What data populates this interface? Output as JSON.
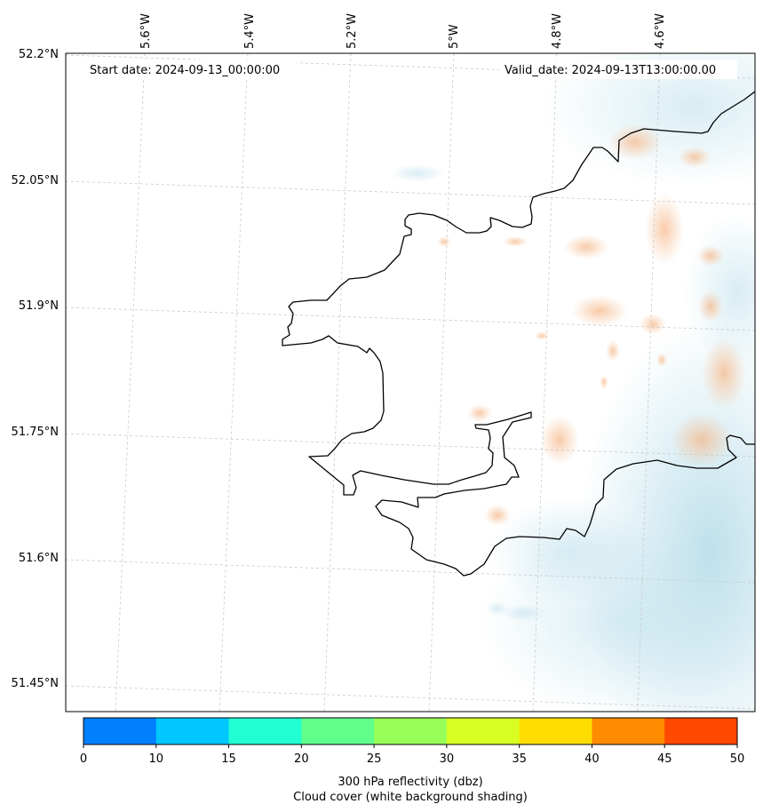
{
  "map": {
    "start_date": "Start date: 2024-09-13_00:00:00",
    "valid_date": "Valid_date: 2024-09-13T13:00:00.00",
    "longitude_labels": [
      "5.6°W",
      "5.4°W",
      "5.2°W",
      "5°W",
      "4.8°W",
      "4.6°W"
    ],
    "latitude_labels": [
      "52.2°N",
      "52.05°N",
      "51.9°N",
      "51.75°N",
      "51.6°N",
      "51.45°N"
    ],
    "gridlines": true,
    "coastline_color": "#000000",
    "cloud_cover_color": "#a9d6e5",
    "reflectivity_shading_color": "#f6c39a"
  },
  "colorbar": {
    "ticks": [
      "0",
      "10",
      "15",
      "20",
      "25",
      "30",
      "35",
      "40",
      "45",
      "50"
    ],
    "colors": [
      "#0080ff",
      "#00c8ff",
      "#22ffd3",
      "#60ff8c",
      "#98ff58",
      "#d8ff22",
      "#ffdd00",
      "#ff8c00",
      "#ff4800"
    ],
    "label_line1": "300 hPa reflectivity (dbz)",
    "label_line2": "Cloud cover (white background shading)"
  }
}
